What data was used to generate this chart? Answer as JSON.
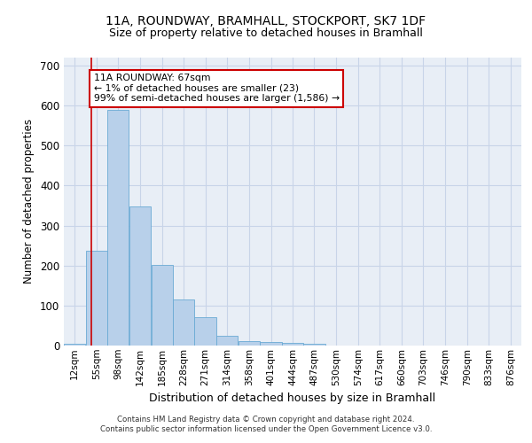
{
  "title1": "11A, ROUNDWAY, BRAMHALL, STOCKPORT, SK7 1DF",
  "title2": "Size of property relative to detached houses in Bramhall",
  "xlabel": "Distribution of detached houses by size in Bramhall",
  "ylabel": "Number of detached properties",
  "annotation_line1": "11A ROUNDWAY: 67sqm",
  "annotation_line2": "← 1% of detached houses are smaller (23)",
  "annotation_line3": "99% of semi-detached houses are larger (1,586) →",
  "property_line_x": 67,
  "bar_labels": [
    "12sqm",
    "55sqm",
    "98sqm",
    "142sqm",
    "185sqm",
    "228sqm",
    "271sqm",
    "314sqm",
    "358sqm",
    "401sqm",
    "444sqm",
    "487sqm",
    "530sqm",
    "574sqm",
    "617sqm",
    "660sqm",
    "703sqm",
    "746sqm",
    "790sqm",
    "833sqm",
    "876sqm"
  ],
  "bin_edges": [
    12,
    55,
    98,
    142,
    185,
    228,
    271,
    314,
    358,
    401,
    444,
    487,
    530,
    574,
    617,
    660,
    703,
    746,
    790,
    833,
    876
  ],
  "bar_heights": [
    5,
    237,
    590,
    348,
    202,
    115,
    72,
    25,
    12,
    9,
    7,
    5,
    0,
    0,
    0,
    0,
    0,
    0,
    0,
    0,
    0
  ],
  "bar_color": "#b8d0ea",
  "bar_edge_color": "#6aaad4",
  "annotation_box_color": "#ffffff",
  "annotation_box_edge": "#cc0000",
  "property_line_color": "#cc0000",
  "grid_color": "#c8d4e8",
  "background_color": "#e8eef6",
  "ylim": [
    0,
    720
  ],
  "yticks": [
    0,
    100,
    200,
    300,
    400,
    500,
    600,
    700
  ],
  "footnote1": "Contains HM Land Registry data © Crown copyright and database right 2024.",
  "footnote2": "Contains public sector information licensed under the Open Government Licence v3.0."
}
